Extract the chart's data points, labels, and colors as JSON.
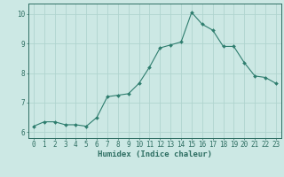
{
  "x": [
    0,
    1,
    2,
    3,
    4,
    5,
    6,
    7,
    8,
    9,
    10,
    11,
    12,
    13,
    14,
    15,
    16,
    17,
    18,
    19,
    20,
    21,
    22,
    23
  ],
  "y": [
    6.2,
    6.35,
    6.35,
    6.25,
    6.25,
    6.2,
    6.5,
    7.2,
    7.25,
    7.3,
    7.65,
    8.2,
    8.85,
    8.95,
    9.05,
    10.05,
    9.65,
    9.45,
    8.9,
    8.9,
    8.35,
    7.9,
    7.85,
    7.65
  ],
  "line_color": "#2e7d6e",
  "marker": "D",
  "marker_size": 2,
  "bg_color": "#cce8e4",
  "grid_color": "#b0d4cf",
  "xlabel": "Humidex (Indice chaleur)",
  "xlim": [
    -0.5,
    23.5
  ],
  "ylim": [
    5.8,
    10.35
  ],
  "yticks": [
    6,
    7,
    8,
    9,
    10
  ],
  "xticks": [
    0,
    1,
    2,
    3,
    4,
    5,
    6,
    7,
    8,
    9,
    10,
    11,
    12,
    13,
    14,
    15,
    16,
    17,
    18,
    19,
    20,
    21,
    22,
    23
  ],
  "xlabel_fontsize": 6.5,
  "tick_fontsize": 5.5,
  "axis_color": "#2e6e62"
}
